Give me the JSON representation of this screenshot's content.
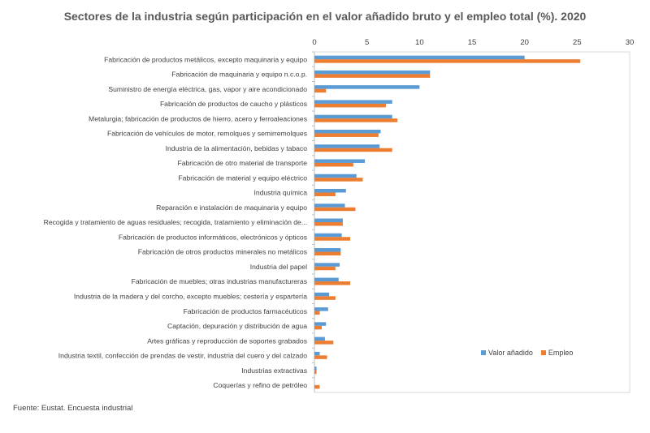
{
  "colors": {
    "series_0": "#5B9BD5",
    "series_1": "#ED7D31"
  },
  "source": "Fuente: Eustat. Encuesta industrial",
  "chart_data": {
    "type": "bar",
    "orientation": "horizontal",
    "title": "Sectores de la industria según participación en el valor añadido bruto y el empleo total (%). 2020",
    "xlim": [
      0,
      30
    ],
    "ticks": [
      "0",
      "5",
      "10",
      "15",
      "20",
      "25",
      "30"
    ],
    "grid": false,
    "legend_position": "bottom-right",
    "categories": [
      "Fabricación de productos metálicos, excepto maquinaria y equipo",
      "Fabricación de maquinaria y equipo n.c.o.p.",
      "Suministro de energía eléctrica, gas, vapor y aire acondicionado",
      "Fabricación de productos de caucho y plásticos",
      "Metalurgia; fabricación de productos de hierro, acero y ferroaleaciones",
      "Fabricación de vehículos de motor, remolques y semirremolques",
      "Industria de la alimentación, bebidas y tabaco",
      "Fabricación de otro material de transporte",
      "Fabricación de material y equipo eléctrico",
      "Industria química",
      "Reparación e instalación de maquinaria y equipo",
      "Recogida y tratamiento de aguas residuales; recogida, tratamiento y eliminación de...",
      "Fabricación de productos informáticos, electrónicos y ópticos",
      "Fabricación de otros productos minerales no metálicos",
      "Industria del papel",
      "Fabricación de muebles; otras industrias manufactureras",
      "Industria de la madera y del corcho, excepto muebles; cestería y espartería",
      "Fabricación de productos farmacéuticos",
      "Captación, depuración y distribución de agua",
      "Artes gráficas y reproducción de soportes grabados",
      "Industria textil, confección de prendas de vestir, industria del cuero y del calzado",
      "Industrias extractivas",
      "Coquerías y refino de petróleo"
    ],
    "series": [
      {
        "name": "Valor añadido",
        "values": [
          20.0,
          11.0,
          10.0,
          7.4,
          7.4,
          6.3,
          6.2,
          4.8,
          4.0,
          3.0,
          2.9,
          2.7,
          2.6,
          2.5,
          2.4,
          2.3,
          1.4,
          1.3,
          1.1,
          1.0,
          0.5,
          0.2,
          0.0
        ]
      },
      {
        "name": "Empleo",
        "values": [
          25.3,
          11.0,
          1.1,
          6.8,
          7.9,
          6.1,
          7.4,
          3.7,
          4.6,
          2.0,
          3.9,
          2.7,
          3.4,
          2.5,
          2.0,
          3.4,
          2.0,
          0.5,
          0.7,
          1.8,
          1.2,
          0.2,
          0.5
        ]
      }
    ]
  }
}
